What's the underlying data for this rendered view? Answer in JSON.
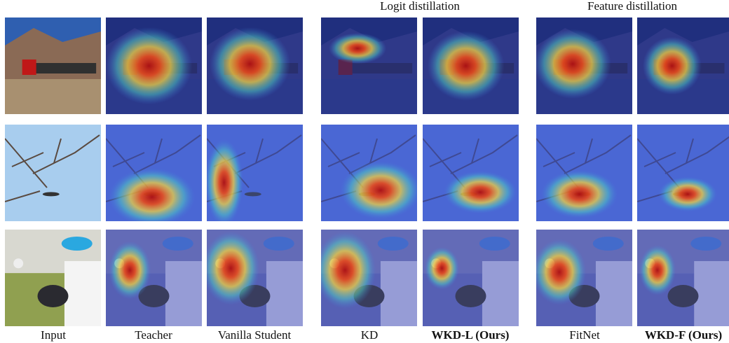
{
  "header": {
    "groups": [
      "Logit distillation",
      "Feature distillation"
    ]
  },
  "columns": [
    "Input",
    "Teacher",
    "Vanilla Student",
    "KD",
    "WKD-L (Ours)",
    "FitNet",
    "WKD-F (Ours)"
  ]
}
